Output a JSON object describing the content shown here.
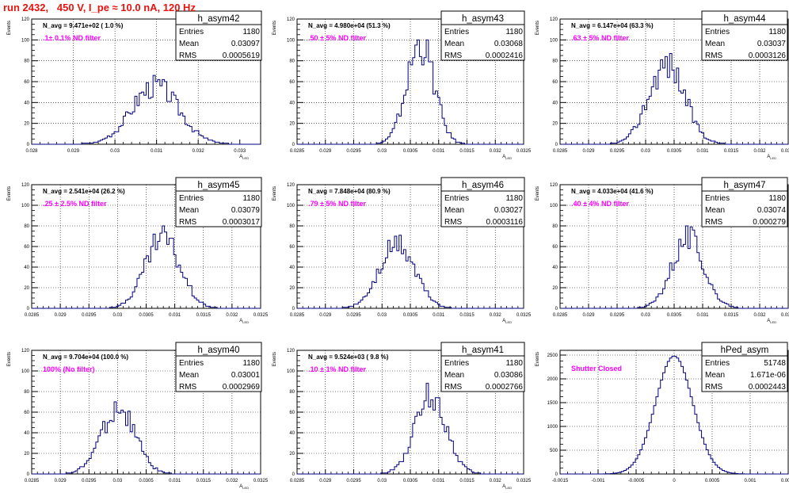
{
  "run_title": "run 2432,   450 V, I_pe ≈ 10.0 nA, 120 Hz",
  "colors": {
    "histogram": "#000080",
    "annotation_filter": "#ff00ff",
    "run_title": "#e8130f"
  },
  "stat_labels": {
    "entries": "Entries",
    "mean": "Mean",
    "rms": "RMS"
  },
  "chart_data": [
    {
      "type": "histogram",
      "name": "h_asym42",
      "ylabel": "Events",
      "xlabel": "A_LED",
      "navg": "N_avg = 9.471e+02 ( 1.0 %)",
      "filter": ".1± 0.1% ND filter",
      "entries": "1180",
      "mean": "0.03097",
      "rms": "0.0005619",
      "xlim": [
        0.028,
        0.0335
      ],
      "ylim": [
        0,
        120
      ],
      "xticks": [
        "0.028",
        "0.029",
        "0.03",
        "0.031",
        "0.032",
        "0.033"
      ],
      "xtick_values": [
        0.028,
        0.029,
        0.03,
        0.031,
        0.032,
        0.033
      ],
      "yticks": [
        "0",
        "20",
        "40",
        "60",
        "80",
        "100",
        "120"
      ],
      "ytick_values": [
        0,
        20,
        40,
        60,
        80,
        100,
        120
      ],
      "peak": 57,
      "peak_x": 0.03097
    },
    {
      "type": "histogram",
      "name": "h_asym43",
      "ylabel": "Events",
      "xlabel": "A_LED",
      "navg": "N_avg = 4.980e+04 (51.3 %)",
      "filter": ".50 ± 5% ND filter",
      "entries": "1180",
      "mean": "0.03068",
      "rms": "0.0002416",
      "xlim": [
        0.0285,
        0.0325
      ],
      "ylim": [
        0,
        120
      ],
      "xticks": [
        "0.0285",
        "0.029",
        "0.0295",
        "0.03",
        "0.0305",
        "0.031",
        "0.0315",
        "0.032",
        "0.0325"
      ],
      "xtick_values": [
        0.0285,
        0.029,
        0.0295,
        0.03,
        0.0305,
        0.031,
        0.0315,
        0.032,
        0.0325
      ],
      "yticks": [
        "0",
        "20",
        "40",
        "60",
        "80",
        "100",
        "120"
      ],
      "ytick_values": [
        0,
        20,
        40,
        60,
        80,
        100,
        120
      ],
      "peak": 98,
      "peak_x": 0.03068
    },
    {
      "type": "histogram",
      "name": "h_asym44",
      "ylabel": "Events",
      "xlabel": "A_LED",
      "navg": "N_avg = 6.147e+04 (63.3 %)",
      "filter": ".63 ± 5% ND filter",
      "entries": "1180",
      "mean": "0.03037",
      "rms": "0.0003126",
      "xlim": [
        0.0285,
        0.0325
      ],
      "ylim": [
        0,
        120
      ],
      "xticks": [
        "0.0285",
        "0.029",
        "0.0295",
        "0.03",
        "0.0305",
        "0.031",
        "0.0315",
        "0.032",
        "0.0325"
      ],
      "xtick_values": [
        0.0285,
        0.029,
        0.0295,
        0.03,
        0.0305,
        0.031,
        0.0315,
        0.032,
        0.0325
      ],
      "yticks": [
        "0",
        "20",
        "40",
        "60",
        "80",
        "100",
        "120"
      ],
      "ytick_values": [
        0,
        20,
        40,
        60,
        80,
        100,
        120
      ],
      "peak": 79,
      "peak_x": 0.03037
    },
    {
      "type": "histogram",
      "name": "h_asym45",
      "ylabel": "Events",
      "xlabel": "A_LED",
      "navg": "N_avg = 2.541e+04 (26.2 %)",
      "filter": ".25 ± 2.5% ND filter",
      "entries": "1180",
      "mean": "0.03079",
      "rms": "0.0003017",
      "xlim": [
        0.0285,
        0.0325
      ],
      "ylim": [
        0,
        120
      ],
      "xticks": [
        "0.0285",
        "0.029",
        "0.0295",
        "0.03",
        "0.0305",
        "0.031",
        "0.0315",
        "0.032",
        "0.0325"
      ],
      "xtick_values": [
        0.0285,
        0.029,
        0.0295,
        0.03,
        0.0305,
        0.031,
        0.0315,
        0.032,
        0.0325
      ],
      "yticks": [
        "0",
        "20",
        "40",
        "60",
        "80",
        "100",
        "120"
      ],
      "ytick_values": [
        0,
        20,
        40,
        60,
        80,
        100,
        120
      ],
      "peak": 69,
      "peak_x": 0.03079
    },
    {
      "type": "histogram",
      "name": "h_asym46",
      "ylabel": "Events",
      "xlabel": "A_LED",
      "navg": "N_avg = 7.848e+04 (80.9 %)",
      "filter": ".79 ± 5% ND filter",
      "entries": "1180",
      "mean": "0.03027",
      "rms": "0.0003116",
      "xlim": [
        0.0285,
        0.0325
      ],
      "ylim": [
        0,
        120
      ],
      "xticks": [
        "0.0285",
        "0.029",
        "0.0295",
        "0.03",
        "0.0305",
        "0.031",
        "0.0315",
        "0.032",
        "0.0325"
      ],
      "xtick_values": [
        0.0285,
        0.029,
        0.0295,
        0.03,
        0.0305,
        0.031,
        0.0315,
        0.032,
        0.0325
      ],
      "yticks": [
        "0",
        "20",
        "40",
        "60",
        "80",
        "100",
        "120"
      ],
      "ytick_values": [
        0,
        20,
        40,
        60,
        80,
        100,
        120
      ],
      "peak": 63,
      "peak_x": 0.03027
    },
    {
      "type": "histogram",
      "name": "h_asym47",
      "ylabel": "Events",
      "xlabel": "A_LED",
      "navg": "N_avg = 4.033e+04 (41.6 %)",
      "filter": ".40 ± 4% ND filter",
      "entries": "1180",
      "mean": "0.03074",
      "rms": "0.000279",
      "xlim": [
        0.0285,
        0.0325
      ],
      "ylim": [
        0,
        120
      ],
      "xticks": [
        "0.0285",
        "0.029",
        "0.0295",
        "0.03",
        "0.0305",
        "0.031",
        "0.0315",
        "0.032",
        "0.0325"
      ],
      "xtick_values": [
        0.0285,
        0.029,
        0.0295,
        0.03,
        0.0305,
        0.031,
        0.0315,
        0.032,
        0.0325
      ],
      "yticks": [
        "0",
        "20",
        "40",
        "60",
        "80",
        "100",
        "120"
      ],
      "ytick_values": [
        0,
        20,
        40,
        60,
        80,
        100,
        120
      ],
      "peak": 70,
      "peak_x": 0.03074
    },
    {
      "type": "histogram",
      "name": "h_asym40",
      "ylabel": "Events",
      "xlabel": "A_LED",
      "navg": "N_avg = 9.704e+04 (100.0 %)",
      "filter": "100% (No filter)",
      "entries": "1180",
      "mean": "0.03001",
      "rms": "0.0002969",
      "xlim": [
        0.0285,
        0.0325
      ],
      "ylim": [
        0,
        120
      ],
      "xticks": [
        "0.0285",
        "0.029",
        "0.0295",
        "0.03",
        "0.0305",
        "0.031",
        "0.0315",
        "0.032",
        "0.0325"
      ],
      "xtick_values": [
        0.0285,
        0.029,
        0.0295,
        0.03,
        0.0305,
        0.031,
        0.0315,
        0.032,
        0.0325
      ],
      "yticks": [
        "0",
        "20",
        "40",
        "60",
        "80",
        "100",
        "120"
      ],
      "ytick_values": [
        0,
        20,
        40,
        60,
        80,
        100,
        120
      ],
      "peak": 65,
      "peak_x": 0.03001
    },
    {
      "type": "histogram",
      "name": "h_asym41",
      "ylabel": "Events",
      "xlabel": "A_LED",
      "navg": "N_avg = 9.524e+03 ( 9.8 %)",
      "filter": ".10 ± 1% ND filter",
      "entries": "1180",
      "mean": "0.03086",
      "rms": "0.0002766",
      "xlim": [
        0.0285,
        0.0325
      ],
      "ylim": [
        0,
        120
      ],
      "xticks": [
        "0.0285",
        "0.029",
        "0.0295",
        "0.03",
        "0.0305",
        "0.031",
        "0.0315",
        "0.032",
        "0.0325"
      ],
      "xtick_values": [
        0.0285,
        0.029,
        0.0295,
        0.03,
        0.0305,
        0.031,
        0.0315,
        0.032,
        0.0325
      ],
      "yticks": [
        "0",
        "20",
        "40",
        "60",
        "80",
        "100",
        "120"
      ],
      "ytick_values": [
        0,
        20,
        40,
        60,
        80,
        100,
        120
      ],
      "peak": 77,
      "peak_x": 0.03086
    },
    {
      "type": "histogram",
      "name": "hPed_asym",
      "ylabel": "Events",
      "xlabel": "",
      "navg": "",
      "filter": "Shutter Closed",
      "entries": "51748",
      "mean": "1.671e-06",
      "rms": "0.0002443",
      "xlim": [
        -0.0015,
        0.0015
      ],
      "ylim": [
        0,
        2600
      ],
      "xticks": [
        "-0.0015",
        "-0.001",
        "-0.0005",
        "0",
        "0.0005",
        "0.001",
        "0.0015"
      ],
      "xtick_values": [
        -0.0015,
        -0.001,
        -0.0005,
        0,
        0.0005,
        0.001,
        0.0015
      ],
      "yticks": [
        "0",
        "500",
        "1000",
        "1500",
        "2000",
        "2500"
      ],
      "ytick_values": [
        0,
        500,
        1000,
        1500,
        2000,
        2500
      ],
      "peak": 2480,
      "peak_x": 0.0
    }
  ]
}
